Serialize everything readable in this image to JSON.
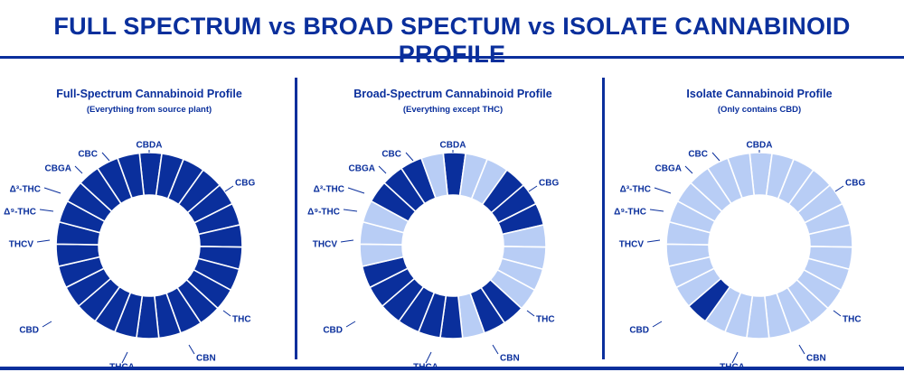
{
  "title": "FULL SPECTRUM vs BROAD SPECTUM vs ISOLATE CANNABINOID PROFILE",
  "colors": {
    "brand": "#0a2f9c",
    "present": "#0a2f9c",
    "absent": "#b8cdf5",
    "separator": "#ffffff"
  },
  "chart_data": [
    {
      "type": "pie",
      "title": "Full-Spectrum Cannabinoid Profile",
      "subtitle": "(Everything from source plant)",
      "labels": [
        "CBDA",
        "CBG",
        "THC",
        "CBN",
        "THCA",
        "CBD",
        "THCV",
        "Δ⁹-THC",
        "Δ³-THC",
        "CBGA",
        "CBC"
      ],
      "segments": [
        {
          "label": "",
          "present": true
        },
        {
          "label": "",
          "present": true
        },
        {
          "label": "",
          "present": true
        },
        {
          "label": "",
          "present": true
        },
        {
          "label": "",
          "present": true
        },
        {
          "label": "",
          "present": true
        },
        {
          "label": "",
          "present": true
        },
        {
          "label": "",
          "present": true
        },
        {
          "label": "",
          "present": true
        },
        {
          "label": "",
          "present": true
        },
        {
          "label": "",
          "present": true
        },
        {
          "label": "",
          "present": true
        },
        {
          "label": "",
          "present": true
        },
        {
          "label": "",
          "present": true
        },
        {
          "label": "",
          "present": true
        },
        {
          "label": "",
          "present": true
        },
        {
          "label": "",
          "present": true
        },
        {
          "label": "",
          "present": true
        },
        {
          "label": "",
          "present": true
        },
        {
          "label": "",
          "present": true
        },
        {
          "label": "",
          "present": true
        },
        {
          "label": "",
          "present": true
        },
        {
          "label": "",
          "present": true
        },
        {
          "label": "",
          "present": true
        },
        {
          "label": "",
          "present": true
        },
        {
          "label": "",
          "present": true
        }
      ]
    },
    {
      "type": "pie",
      "title": "Broad-Spectrum Cannabinoid Profile",
      "subtitle": "(Everything except THC)",
      "labels": [
        "CBDA",
        "CBG",
        "THC",
        "CBN",
        "THCA",
        "CBD",
        "THCV",
        "Δ⁹-THC",
        "Δ³-THC",
        "CBGA",
        "CBC"
      ],
      "segments": [
        {
          "label": "",
          "present": true
        },
        {
          "label": "",
          "present": false
        },
        {
          "label": "",
          "present": false
        },
        {
          "label": "",
          "present": true
        },
        {
          "label": "",
          "present": true
        },
        {
          "label": "",
          "present": true
        },
        {
          "label": "",
          "present": false
        },
        {
          "label": "",
          "present": false
        },
        {
          "label": "",
          "present": false
        },
        {
          "label": "",
          "present": false
        },
        {
          "label": "",
          "present": true
        },
        {
          "label": "",
          "present": true
        },
        {
          "label": "",
          "present": false
        },
        {
          "label": "",
          "present": true
        },
        {
          "label": "",
          "present": true
        },
        {
          "label": "",
          "present": true
        },
        {
          "label": "",
          "present": true
        },
        {
          "label": "",
          "present": true
        },
        {
          "label": "",
          "present": true
        },
        {
          "label": "",
          "present": false
        },
        {
          "label": "",
          "present": false
        },
        {
          "label": "",
          "present": false
        },
        {
          "label": "",
          "present": true
        },
        {
          "label": "",
          "present": true
        },
        {
          "label": "",
          "present": true
        },
        {
          "label": "",
          "present": false
        }
      ]
    },
    {
      "type": "pie",
      "title": "Isolate Cannabinoid Profile",
      "subtitle": "(Only contains CBD)",
      "labels": [
        "CBDA",
        "CBG",
        "THC",
        "CBN",
        "THCA",
        "CBD",
        "THCV",
        "Δ⁹-THC",
        "Δ³-THC",
        "CBGA",
        "CBC"
      ],
      "segments": [
        {
          "label": "",
          "present": false
        },
        {
          "label": "",
          "present": false
        },
        {
          "label": "",
          "present": false
        },
        {
          "label": "",
          "present": false
        },
        {
          "label": "",
          "present": false
        },
        {
          "label": "",
          "present": false
        },
        {
          "label": "",
          "present": false
        },
        {
          "label": "",
          "present": false
        },
        {
          "label": "",
          "present": false
        },
        {
          "label": "",
          "present": false
        },
        {
          "label": "",
          "present": false
        },
        {
          "label": "",
          "present": false
        },
        {
          "label": "",
          "present": false
        },
        {
          "label": "",
          "present": false
        },
        {
          "label": "",
          "present": false
        },
        {
          "label": "",
          "present": false
        },
        {
          "label": "",
          "present": true
        },
        {
          "label": "",
          "present": false
        },
        {
          "label": "",
          "present": false
        },
        {
          "label": "",
          "present": false
        },
        {
          "label": "",
          "present": false
        },
        {
          "label": "",
          "present": false
        },
        {
          "label": "",
          "present": false
        },
        {
          "label": "",
          "present": false
        },
        {
          "label": "",
          "present": false
        },
        {
          "label": "",
          "present": false
        }
      ]
    }
  ]
}
